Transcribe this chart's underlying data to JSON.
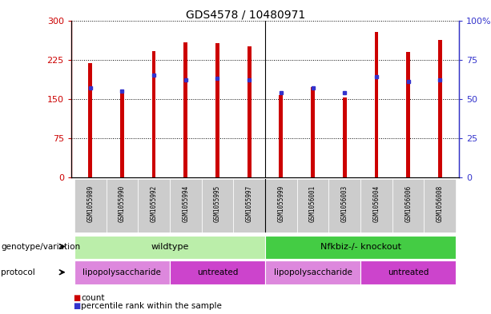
{
  "title": "GDS4578 / 10480971",
  "samples": [
    "GSM1055989",
    "GSM1055990",
    "GSM1055992",
    "GSM1055994",
    "GSM1055995",
    "GSM1055997",
    "GSM1055999",
    "GSM1056001",
    "GSM1056003",
    "GSM1056004",
    "GSM1056006",
    "GSM1056008"
  ],
  "counts": [
    218,
    168,
    242,
    258,
    256,
    250,
    158,
    172,
    152,
    278,
    240,
    262
  ],
  "percentiles": [
    57,
    55,
    65,
    62,
    63,
    62,
    54,
    57,
    54,
    64,
    61,
    62
  ],
  "ylim_left": [
    0,
    300
  ],
  "ylim_right": [
    0,
    100
  ],
  "yticks_left": [
    0,
    75,
    150,
    225,
    300
  ],
  "yticks_right": [
    0,
    25,
    50,
    75,
    100
  ],
  "ytick_labels_right": [
    "0",
    "25",
    "50",
    "75",
    "100%"
  ],
  "bar_color": "#cc0000",
  "dot_color": "#3333cc",
  "genotype_groups": [
    {
      "label": "wildtype",
      "start": 0,
      "end": 6,
      "color": "#bbeeaa"
    },
    {
      "label": "Nfkbiz-/- knockout",
      "start": 6,
      "end": 12,
      "color": "#44cc44"
    }
  ],
  "protocol_groups": [
    {
      "label": "lipopolysaccharide",
      "start": 0,
      "end": 3,
      "color": "#dd88dd"
    },
    {
      "label": "untreated",
      "start": 3,
      "end": 6,
      "color": "#cc44cc"
    },
    {
      "label": "lipopolysaccharide",
      "start": 6,
      "end": 9,
      "color": "#dd88dd"
    },
    {
      "label": "untreated",
      "start": 9,
      "end": 12,
      "color": "#cc44cc"
    }
  ]
}
